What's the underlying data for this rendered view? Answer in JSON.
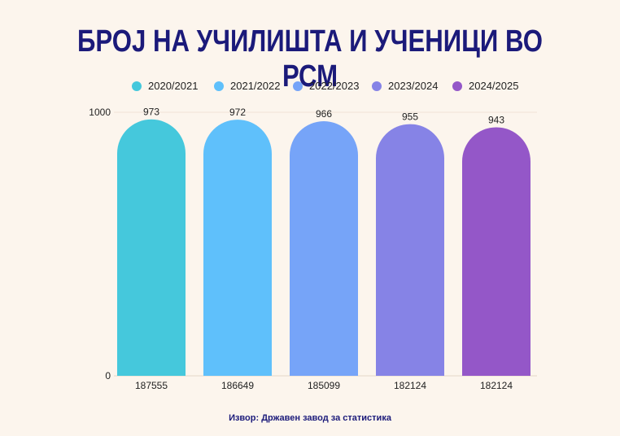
{
  "title": "БРОЈ НА УЧИЛИШТА И УЧЕНИЦИ ВО РСМ",
  "source": "Извор: Државен завод за статистика",
  "chart_data": {
    "type": "bar",
    "categories": [
      "187555",
      "186649",
      "185099",
      "182124",
      "182124"
    ],
    "series": [
      {
        "name": "2020/2021",
        "color": "#45c8dc",
        "value": 973
      },
      {
        "name": "2021/2022",
        "color": "#5fc0fb",
        "value": 972
      },
      {
        "name": "2022/2023",
        "color": "#76a4f8",
        "value": 966
      },
      {
        "name": "2023/2024",
        "color": "#8683e6",
        "value": 955
      },
      {
        "name": "2024/2025",
        "color": "#9457c8",
        "value": 943
      }
    ],
    "values": [
      973,
      972,
      966,
      955,
      943
    ],
    "y_ticks": [
      "0",
      "1000"
    ],
    "ylim": [
      0,
      1000
    ],
    "legend_position": "top",
    "grid": false
  }
}
